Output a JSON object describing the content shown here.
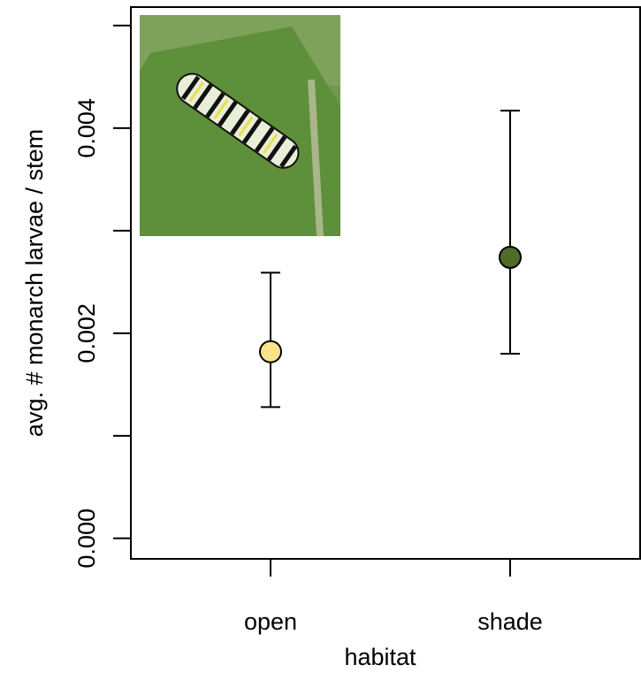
{
  "chart_data": {
    "type": "errorpoint",
    "x_label": "habitat",
    "y_label": "avg. # monarch larvae / stem",
    "categories": [
      "open",
      "shade"
    ],
    "values": [
      0.00182,
      0.00274
    ],
    "lower": [
      0.00128,
      0.0018
    ],
    "upper": [
      0.00259,
      0.00417
    ],
    "colors": [
      "#fce38a",
      "#4f6b2a"
    ],
    "ylim": [
      -0.0002,
      0.00518
    ],
    "yticks": [
      {
        "value": 0,
        "label": "0.000"
      },
      {
        "value": 0.002,
        "label": "0.002"
      },
      {
        "value": 0.004,
        "label": "0.004"
      }
    ],
    "yminor_ticks": [
      0.001,
      0.003,
      0.005
    ]
  }
}
